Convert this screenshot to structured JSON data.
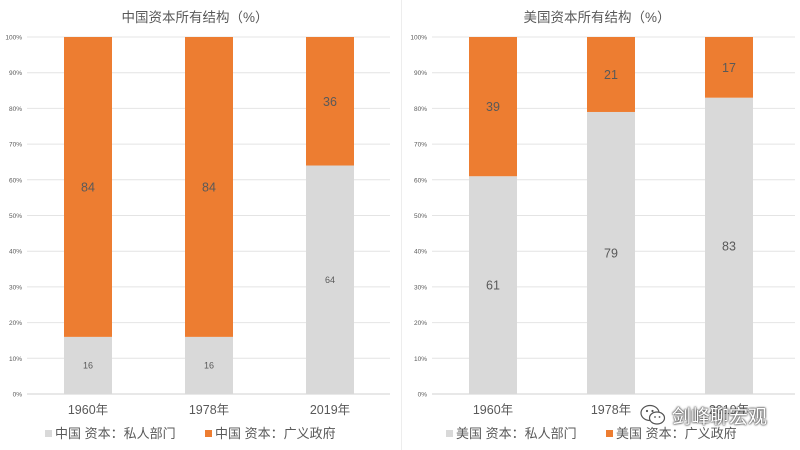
{
  "colors": {
    "private": "#d9d9d9",
    "government": "#ed7d31",
    "grid": "#e4e4e4",
    "text": "#595959",
    "axis": "#d0d0d0"
  },
  "watermark": {
    "text": "剑峰聊宏观",
    "icon": "wechat-icon"
  },
  "chart_data": [
    {
      "type": "bar",
      "stacked": true,
      "title": "中国资本所有结构（%）",
      "categories": [
        "1960年",
        "1978年",
        "2019年"
      ],
      "ylim": [
        0,
        100
      ],
      "yticks": [
        "0%",
        "10%",
        "20%",
        "30%",
        "40%",
        "50%",
        "60%",
        "70%",
        "80%",
        "90%",
        "100%"
      ],
      "grid": true,
      "legend_position": "bottom",
      "series": [
        {
          "name": "中国 资本：私人部门",
          "color_key": "private",
          "values": [
            16,
            16,
            64
          ]
        },
        {
          "name": "中国 资本：广义政府",
          "color_key": "government",
          "values": [
            84,
            84,
            36
          ]
        }
      ]
    },
    {
      "type": "bar",
      "stacked": true,
      "title": "美国资本所有结构（%）",
      "categories": [
        "1960年",
        "1978年",
        "2019年"
      ],
      "ylim": [
        0,
        100
      ],
      "yticks": [
        "0%",
        "10%",
        "20%",
        "30%",
        "40%",
        "50%",
        "60%",
        "70%",
        "80%",
        "90%",
        "100%"
      ],
      "grid": true,
      "legend_position": "bottom",
      "series": [
        {
          "name": "美国 资本：私人部门",
          "color_key": "private",
          "values": [
            61,
            79,
            83
          ]
        },
        {
          "name": "美国 资本：广义政府",
          "color_key": "government",
          "values": [
            39,
            21,
            17
          ]
        }
      ]
    }
  ]
}
